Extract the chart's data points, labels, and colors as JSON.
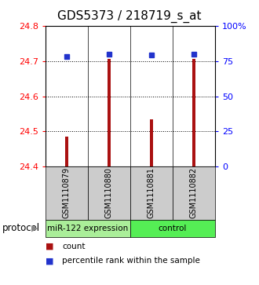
{
  "title": "GDS5373 / 218719_s_at",
  "samples": [
    "GSM1110879",
    "GSM1110880",
    "GSM1110881",
    "GSM1110882"
  ],
  "count_values": [
    24.485,
    24.705,
    24.535,
    24.705
  ],
  "percentile_values": [
    78,
    80,
    79,
    80
  ],
  "ylim_left": [
    24.4,
    24.8
  ],
  "ylim_right": [
    0,
    100
  ],
  "yticks_left": [
    24.4,
    24.5,
    24.6,
    24.7,
    24.8
  ],
  "yticks_right": [
    0,
    25,
    50,
    75,
    100
  ],
  "ytick_labels_right": [
    "0",
    "25",
    "50",
    "75",
    "100%"
  ],
  "bar_color": "#aa1111",
  "dot_color": "#2233cc",
  "groups": [
    {
      "label": "miR-122 expression",
      "color": "#aaee99",
      "samples": [
        0,
        1
      ]
    },
    {
      "label": "control",
      "color": "#55ee55",
      "samples": [
        2,
        3
      ]
    }
  ],
  "protocol_label": "protocol",
  "legend_count_label": "count",
  "legend_percentile_label": "percentile rank within the sample",
  "sample_box_color": "#cccccc",
  "title_fontsize": 11,
  "tick_fontsize": 8,
  "bar_width": 0.08
}
